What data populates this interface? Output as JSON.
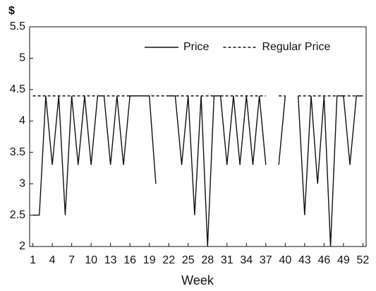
{
  "chart_data": {
    "type": "line",
    "y_label": "$",
    "x_label": "Week",
    "x": [
      1,
      2,
      3,
      4,
      5,
      6,
      7,
      8,
      9,
      10,
      11,
      12,
      13,
      14,
      15,
      16,
      17,
      18,
      19,
      20,
      21,
      22,
      23,
      24,
      25,
      26,
      27,
      28,
      29,
      30,
      31,
      32,
      33,
      34,
      35,
      36,
      37,
      38,
      39,
      40,
      41,
      42,
      43,
      44,
      45,
      46,
      47,
      48,
      49,
      50,
      51,
      52
    ],
    "series": [
      {
        "name": "Price",
        "color": "#111111",
        "style": "solid",
        "values": [
          2.5,
          2.5,
          4.4,
          3.3,
          4.4,
          2.5,
          4.4,
          3.3,
          4.4,
          3.3,
          4.4,
          4.4,
          3.3,
          4.4,
          3.3,
          4.4,
          4.4,
          4.4,
          4.4,
          3.0,
          null,
          4.4,
          4.4,
          3.3,
          4.4,
          2.5,
          4.4,
          2.0,
          4.4,
          4.4,
          3.3,
          4.4,
          3.3,
          4.4,
          3.3,
          4.4,
          3.3,
          null,
          3.3,
          4.4,
          null,
          4.4,
          2.5,
          4.4,
          3.0,
          4.4,
          2.0,
          4.4,
          4.4,
          3.3,
          4.4,
          4.4
        ]
      },
      {
        "name": "Regular Price",
        "color": "#111111",
        "style": "dashed",
        "values": [
          4.4,
          4.4,
          4.4,
          4.4,
          4.4,
          4.4,
          4.4,
          4.4,
          4.4,
          4.4,
          4.4,
          4.4,
          4.4,
          4.4,
          4.4,
          4.4,
          4.4,
          4.4,
          4.4,
          4.4,
          4.4,
          4.4,
          4.4,
          4.4,
          4.4,
          4.4,
          4.4,
          4.4,
          4.4,
          4.4,
          4.4,
          4.4,
          4.4,
          4.4,
          4.4,
          4.4,
          4.4,
          null,
          4.4,
          4.4,
          null,
          4.4,
          4.4,
          4.4,
          4.4,
          4.4,
          4.4,
          4.4,
          4.4,
          4.4,
          4.4,
          4.4
        ]
      }
    ],
    "xlim": [
      0.5,
      52.5
    ],
    "xticks": [
      1,
      4,
      7,
      10,
      13,
      16,
      19,
      22,
      25,
      28,
      31,
      34,
      37,
      40,
      43,
      46,
      49,
      52
    ],
    "ylim": [
      2,
      5.5
    ],
    "yticks": [
      2,
      2.5,
      3,
      3.5,
      4,
      4.5,
      5,
      5.5
    ],
    "legend": "top-right",
    "grid": false
  }
}
